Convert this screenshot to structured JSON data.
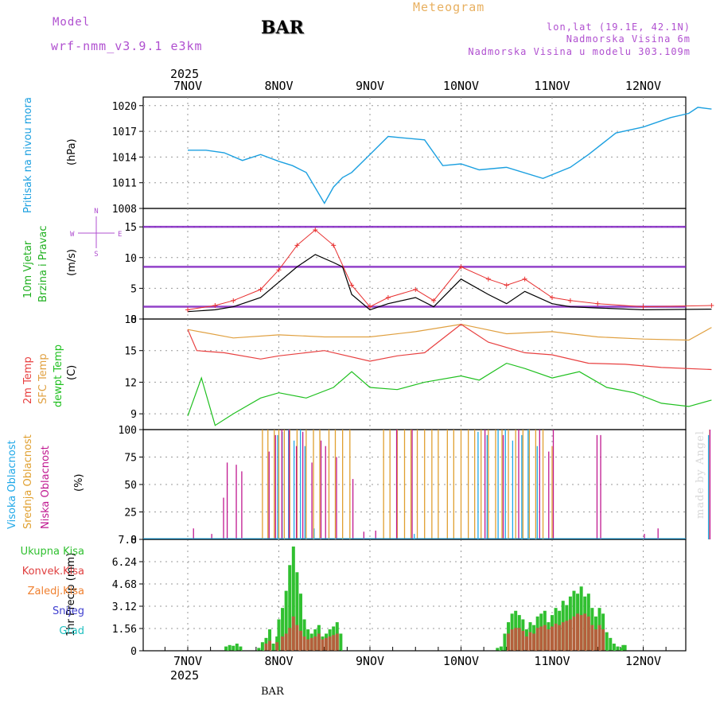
{
  "header": {
    "model_label": "Model",
    "model_name": "wrf-nmm_v3.9.1 e3km",
    "station": "BAR",
    "meteogram": "Meteogram",
    "lonlat": "lon,lat (19.1E, 42.1N)",
    "elevation": "Nadmorska Visina 6m",
    "model_elevation": "Nadmorska Visina u modelu 303.109m"
  },
  "time_axis": {
    "year": "2025",
    "day_labels": [
      "7NOV",
      "8NOV",
      "9NOV",
      "10NOV",
      "11NOV",
      "12NOV"
    ],
    "range_days": [
      0,
      5.75
    ]
  },
  "footer": "BAR",
  "watermark": "made by Angel",
  "colors": {
    "pressure": "#1ca0e0",
    "temp2m": "#e84040",
    "sfc": "#e0a040",
    "dew": "#20c020",
    "high": "#20a8e8",
    "mid": "#e0a030",
    "low": "#c01890",
    "precip_total": "#30c030",
    "precip_conv": "#e04040",
    "wind_lines": "#8020c0",
    "gust": "#e83030"
  },
  "chart_data": [
    {
      "type": "line",
      "panel": "pressure",
      "ylabel_side": "Pritisak na nivou mora",
      "unit": "(hPa)",
      "ylim": [
        1008,
        1021
      ],
      "yticks": [
        1008,
        1011,
        1014,
        1017,
        1020
      ],
      "series": [
        {
          "name": "Pritisak na nivou mora",
          "x": [
            0,
            0.2,
            0.4,
            0.6,
            0.8,
            1.0,
            1.15,
            1.3,
            1.5,
            1.6,
            1.7,
            1.8,
            2.0,
            2.2,
            2.4,
            2.6,
            2.8,
            3.0,
            3.2,
            3.5,
            3.9,
            4.2,
            4.4,
            4.7,
            5.0,
            5.3,
            5.5,
            5.6,
            5.75
          ],
          "values": [
            1014.8,
            1014.8,
            1014.5,
            1013.6,
            1014.3,
            1013.5,
            1013.0,
            1012.2,
            1008.6,
            1010.5,
            1011.6,
            1012.2,
            1014.3,
            1016.4,
            1016.2,
            1016.0,
            1013.0,
            1013.2,
            1012.5,
            1012.8,
            1011.5,
            1012.8,
            1014.3,
            1016.8,
            1017.5,
            1018.6,
            1019.1,
            1019.8,
            1019.6
          ]
        }
      ]
    },
    {
      "type": "line",
      "panel": "wind",
      "ylabel_side_1": "10m Vjetar",
      "ylabel_side_2": "Brzina i Pravac",
      "unit": "(m/s)",
      "compass": [
        "N",
        "S",
        "W",
        "E"
      ],
      "ylim": [
        0,
        18
      ],
      "yticks": [
        0,
        5,
        10,
        15
      ],
      "series": [
        {
          "name": "Brzina",
          "x": [
            0,
            0.3,
            0.5,
            0.8,
            1.0,
            1.2,
            1.4,
            1.6,
            1.7,
            1.8,
            2.0,
            2.2,
            2.5,
            2.7,
            3.0,
            3.3,
            3.5,
            3.7,
            4.0,
            4.2,
            4.5,
            5.0,
            5.75
          ],
          "values": [
            1.2,
            1.5,
            2.0,
            3.5,
            6.0,
            8.5,
            10.5,
            9.2,
            8.5,
            4.0,
            1.5,
            2.5,
            3.5,
            2.0,
            6.5,
            4.0,
            2.5,
            4.5,
            2.5,
            2.0,
            1.8,
            1.5,
            1.6
          ]
        },
        {
          "name": "Udari",
          "x": [
            0,
            0.3,
            0.5,
            0.8,
            1.0,
            1.2,
            1.4,
            1.6,
            1.8,
            2.0,
            2.2,
            2.5,
            2.7,
            3.0,
            3.3,
            3.5,
            3.7,
            4.0,
            4.2,
            4.5,
            5.0,
            5.75
          ],
          "values": [
            1.5,
            2.2,
            3.0,
            4.8,
            8.0,
            12.0,
            14.5,
            12.0,
            5.5,
            2.0,
            3.5,
            4.8,
            3.0,
            8.5,
            6.5,
            5.5,
            6.5,
            3.5,
            3.0,
            2.5,
            2.0,
            2.2
          ]
        }
      ]
    },
    {
      "type": "line",
      "panel": "temperature",
      "ylabel_side_1": "2m Temp",
      "ylabel_side_2": "SFC Temp",
      "ylabel_side_3": "dewpt Temp",
      "unit": "(C)",
      "ylim": [
        7.5,
        18
      ],
      "yticks": [
        9,
        12,
        15,
        18
      ],
      "series": [
        {
          "name": "2m Temp",
          "x": [
            0,
            0.1,
            0.4,
            0.8,
            1.0,
            1.5,
            2.0,
            2.3,
            2.6,
            3.0,
            3.3,
            3.7,
            4.0,
            4.4,
            4.8,
            5.2,
            5.75
          ],
          "values": [
            17.0,
            15.0,
            14.8,
            14.2,
            14.5,
            15.0,
            14.0,
            14.5,
            14.8,
            17.5,
            15.8,
            14.8,
            14.6,
            13.8,
            13.7,
            13.4,
            13.2
          ]
        },
        {
          "name": "SFC Temp",
          "x": [
            0,
            0.5,
            1.0,
            1.5,
            2.0,
            2.5,
            3.0,
            3.5,
            4.0,
            4.5,
            5.0,
            5.5,
            5.75
          ],
          "values": [
            17.0,
            16.2,
            16.5,
            16.3,
            16.3,
            16.8,
            17.5,
            16.6,
            16.8,
            16.3,
            16.1,
            16.0,
            17.2
          ]
        },
        {
          "name": "dewpt Temp",
          "x": [
            0,
            0.15,
            0.3,
            0.5,
            0.8,
            1.0,
            1.3,
            1.6,
            1.8,
            2.0,
            2.3,
            2.6,
            3.0,
            3.2,
            3.5,
            3.7,
            4.0,
            4.3,
            4.6,
            4.9,
            5.2,
            5.5,
            5.75
          ],
          "values": [
            8.8,
            12.4,
            7.9,
            9.0,
            10.5,
            11.0,
            10.5,
            11.5,
            13.0,
            11.5,
            11.3,
            12.0,
            12.6,
            12.2,
            13.8,
            13.3,
            12.4,
            13.0,
            11.5,
            11.0,
            10.0,
            9.7,
            10.3
          ]
        }
      ]
    },
    {
      "type": "bar",
      "panel": "clouds",
      "ylabel_side_1": "Visoka Oblacnost",
      "ylabel_side_2": "Srednja Oblacnost",
      "ylabel_side_3": "Niska Oblacnost",
      "unit": "(%)",
      "ylim": [
        0,
        100
      ],
      "yticks": [
        0,
        25,
        50,
        75,
        100
      ],
      "series": [
        {
          "name": "Visoka Oblacnost",
          "x": [
            1.0,
            1.05,
            1.12,
            1.18,
            1.25,
            1.3,
            1.4,
            2.5,
            3.2,
            3.3,
            3.42,
            3.5,
            3.58,
            3.68,
            3.75,
            3.85,
            5.73
          ],
          "values": [
            95,
            98,
            100,
            90,
            100,
            85,
            10,
            5,
            98,
            95,
            100,
            100,
            90,
            95,
            100,
            85,
            95
          ]
        },
        {
          "name": "Srednja Oblacnost",
          "x": [
            0.82,
            0.88,
            0.95,
            1.0,
            1.06,
            1.12,
            1.2,
            1.3,
            1.38,
            1.45,
            1.55,
            1.62,
            1.7,
            1.78,
            2.15,
            2.22,
            2.3,
            2.38,
            2.45,
            2.52,
            2.6,
            2.68,
            2.75,
            2.85,
            2.92,
            3.0,
            3.08,
            3.15,
            3.22,
            3.3,
            3.38,
            3.45,
            3.52,
            3.6,
            3.68,
            3.75,
            3.82,
            3.9,
            4.0,
            5.73
          ],
          "values": [
            100,
            100,
            100,
            100,
            100,
            100,
            100,
            100,
            100,
            100,
            100,
            100,
            100,
            100,
            100,
            100,
            100,
            100,
            100,
            100,
            100,
            100,
            100,
            100,
            100,
            100,
            100,
            100,
            100,
            100,
            100,
            100,
            100,
            100,
            100,
            100,
            100,
            100,
            85,
            100
          ]
        },
        {
          "name": "Niska Oblacnost",
          "x": [
            0.05,
            0.25,
            0.38,
            0.42,
            0.52,
            0.58,
            0.88,
            0.95,
            1.02,
            1.1,
            1.18,
            1.25,
            1.35,
            1.45,
            1.5,
            1.62,
            1.8,
            1.92,
            2.05,
            2.28,
            2.45,
            3.25,
            3.45,
            3.62,
            3.85,
            3.95,
            4.0,
            4.48,
            4.52,
            5.0,
            5.15,
            5.72
          ],
          "values": [
            10,
            5,
            38,
            70,
            68,
            62,
            80,
            95,
            100,
            100,
            85,
            98,
            70,
            90,
            85,
            75,
            55,
            7,
            8,
            100,
            100,
            100,
            95,
            100,
            100,
            80,
            100,
            95,
            95,
            5,
            10,
            100
          ]
        }
      ]
    },
    {
      "type": "bar",
      "panel": "precip",
      "unit_label": "1hr Precip (mm)",
      "legend": [
        "Ukupna Kisa",
        "Konvek.Kisa",
        "Zaledj.Kisa",
        "Snijeg",
        "Grad"
      ],
      "ylim": [
        0,
        7.8
      ],
      "yticks": [
        0,
        1.56,
        3.12,
        4.68,
        6.24,
        7.8
      ],
      "ytick_labels": [
        "0",
        "1.56",
        "3.12",
        "4.68",
        "6.24",
        "7.8"
      ],
      "series": [
        {
          "name": "Ukupna Kisa",
          "x": [
            0.42,
            0.46,
            0.5,
            0.54,
            0.58,
            0.78,
            0.82,
            0.86,
            0.9,
            0.94,
            0.98,
            1.0,
            1.04,
            1.08,
            1.12,
            1.16,
            1.2,
            1.24,
            1.28,
            1.32,
            1.36,
            1.4,
            1.44,
            1.48,
            1.52,
            1.56,
            1.6,
            1.64,
            1.68,
            3.4,
            3.44,
            3.48,
            3.52,
            3.56,
            3.6,
            3.64,
            3.68,
            3.72,
            3.76,
            3.8,
            3.84,
            3.88,
            3.92,
            3.96,
            4.0,
            4.04,
            4.08,
            4.12,
            4.16,
            4.2,
            4.24,
            4.28,
            4.32,
            4.36,
            4.4,
            4.44,
            4.48,
            4.52,
            4.56,
            4.6,
            4.64,
            4.68,
            4.72,
            4.76,
            4.82,
            4.86,
            4.9,
            4.94,
            4.98,
            5.02,
            5.06,
            5.1,
            5.14,
            5.18,
            5.22,
            5.26,
            5.3,
            5.34,
            5.38,
            5.42,
            5.46,
            5.5,
            5.54,
            5.58,
            5.62,
            5.66,
            5.7,
            4.78,
            4.8
          ],
          "values": [
            0.3,
            0.4,
            0.35,
            0.5,
            0.3,
            0.2,
            0.6,
            0.9,
            1.5,
            0.5,
            1.0,
            2.2,
            3.0,
            4.2,
            6.0,
            7.3,
            5.5,
            4.0,
            2.2,
            1.5,
            1.2,
            1.5,
            1.8,
            1.0,
            1.2,
            1.5,
            1.7,
            2.0,
            1.2,
            0.2,
            0.3,
            1.2,
            2.0,
            2.6,
            2.8,
            2.5,
            2.2,
            1.5,
            2.0,
            1.8,
            2.4,
            2.6,
            2.8,
            2.0,
            2.5,
            3.0,
            2.8,
            3.5,
            3.2,
            3.8,
            4.2,
            4.0,
            4.5,
            3.8,
            4.0,
            3.0,
            2.4,
            3.0,
            2.6,
            1.3,
            0.9,
            0.5,
            0.3,
            0.2,
            0,
            0,
            0,
            0,
            0,
            0,
            0,
            0,
            0,
            0,
            0,
            0,
            0,
            0,
            0,
            0,
            0,
            0,
            0,
            0,
            0,
            0,
            0,
            0.4,
            0.4
          ]
        },
        {
          "name": "Konvek.Kisa",
          "x": [
            0.86,
            0.9,
            0.98,
            1.04,
            1.08,
            1.12,
            1.16,
            1.2,
            1.24,
            1.28,
            1.32,
            1.36,
            1.4,
            1.44,
            1.48,
            1.52,
            1.56,
            1.6,
            1.64,
            3.52,
            3.56,
            3.6,
            3.64,
            3.68,
            3.72,
            3.76,
            3.8,
            3.84,
            3.88,
            3.92,
            3.96,
            4.0,
            4.04,
            4.08,
            4.12,
            4.16,
            4.2,
            4.24,
            4.28,
            4.32,
            4.36,
            4.4,
            4.44,
            4.48,
            4.52,
            4.56
          ],
          "values": [
            0.5,
            0.7,
            0.6,
            1.0,
            1.2,
            1.6,
            2.4,
            1.8,
            1.4,
            1.0,
            0.8,
            0.9,
            1.0,
            1.2,
            0.8,
            0.9,
            1.0,
            1.1,
            1.2,
            1.2,
            1.5,
            1.6,
            1.6,
            1.4,
            1.0,
            1.3,
            1.2,
            1.6,
            1.7,
            1.8,
            1.5,
            1.7,
            1.9,
            1.8,
            2.0,
            2.1,
            2.2,
            2.4,
            2.6,
            2.5,
            2.6,
            2.4,
            1.8,
            1.5,
            1.8,
            1.5
          ]
        }
      ]
    }
  ]
}
